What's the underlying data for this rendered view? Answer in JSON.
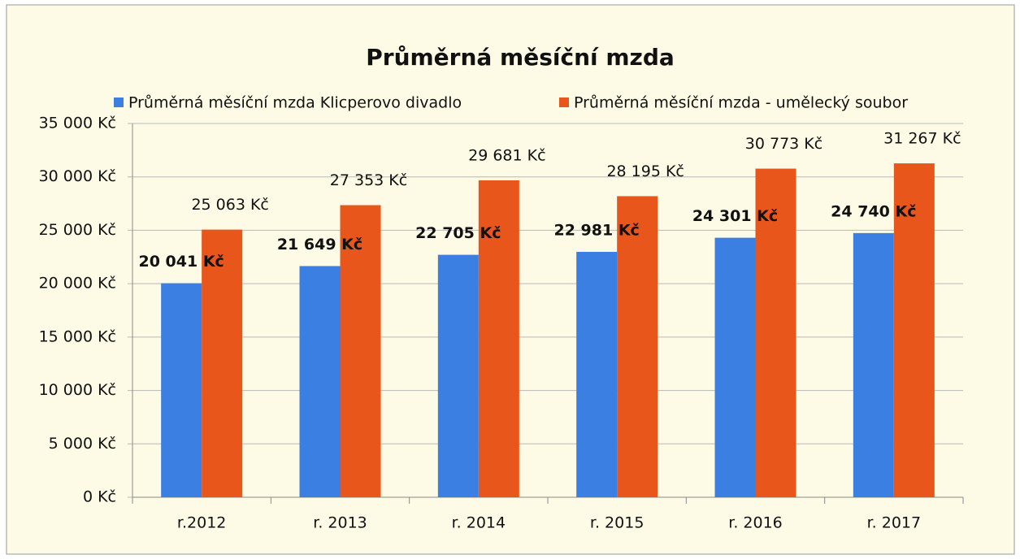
{
  "chart_data": {
    "type": "bar",
    "title": "Průměrná měsíční mzda",
    "categories": [
      "r.2012",
      "r. 2013",
      "r. 2014",
      "r. 2015",
      "r. 2016",
      "r. 2017"
    ],
    "series": [
      {
        "name": "Průměrná měsíční mzda Klicperovo divadlo",
        "color": "#3b7fe3",
        "values": [
          20041,
          21649,
          22705,
          22981,
          24301,
          24740
        ],
        "value_labels": [
          "20 041 Kč",
          "21 649 Kč",
          "22 705 Kč",
          "22 981 Kč",
          "24 301 Kč",
          "24 740 Kč"
        ]
      },
      {
        "name": "Průměrná měsíční mzda - umělecký soubor",
        "color": "#e8561c",
        "values": [
          25063,
          27353,
          29681,
          28195,
          30773,
          31267
        ],
        "value_labels": [
          "25 063 Kč",
          "27 353 Kč",
          "29 681 Kč",
          "28 195 Kč",
          "30 773 Kč",
          "31 267 Kč"
        ]
      }
    ],
    "ylim": [
      0,
      35000
    ],
    "yticks": [
      {
        "value": 0,
        "label": "0 Kč"
      },
      {
        "value": 5000,
        "label": "5 000 Kč"
      },
      {
        "value": 10000,
        "label": "10 000 Kč"
      },
      {
        "value": 15000,
        "label": "15 000 Kč"
      },
      {
        "value": 20000,
        "label": "20 000 Kč"
      },
      {
        "value": 25000,
        "label": "25 000 Kč"
      },
      {
        "value": 30000,
        "label": "30 000 Kč"
      },
      {
        "value": 35000,
        "label": "35 000 Kč"
      }
    ],
    "grid": true
  }
}
